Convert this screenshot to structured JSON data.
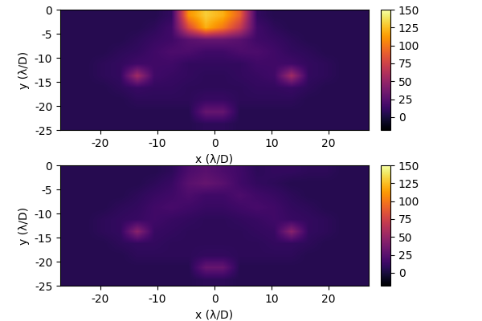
{
  "chart_data": [
    {
      "type": "heatmap",
      "x_label": "x (λ/D)",
      "y_label": "y (λ/D)",
      "color": "inferno",
      "xlim": [
        -27,
        27
      ],
      "ylim": [
        -25,
        0
      ],
      "xticks": [
        -20,
        -10,
        0,
        10,
        20
      ],
      "yticks": [
        0,
        -5,
        -10,
        -15,
        -20,
        -25
      ],
      "cells": [
        [
          5,
          5,
          5,
          5,
          5,
          5,
          10,
          110,
          130,
          120,
          90,
          10,
          5,
          5,
          5,
          5,
          5,
          5
        ],
        [
          5,
          5,
          5,
          5,
          5,
          8,
          15,
          80,
          120,
          100,
          70,
          15,
          8,
          5,
          5,
          5,
          5,
          5
        ],
        [
          5,
          5,
          5,
          5,
          8,
          12,
          15,
          25,
          30,
          30,
          25,
          15,
          12,
          8,
          5,
          5,
          5,
          5
        ],
        [
          5,
          5,
          5,
          8,
          10,
          15,
          20,
          20,
          15,
          15,
          20,
          20,
          15,
          10,
          8,
          5,
          5,
          5
        ],
        [
          5,
          5,
          8,
          10,
          15,
          15,
          15,
          10,
          10,
          10,
          10,
          15,
          15,
          15,
          10,
          8,
          5,
          5
        ],
        [
          5,
          5,
          8,
          10,
          55,
          15,
          12,
          10,
          8,
          8,
          10,
          12,
          15,
          55,
          10,
          8,
          5,
          5
        ],
        [
          5,
          5,
          5,
          8,
          12,
          10,
          10,
          8,
          8,
          8,
          8,
          10,
          10,
          12,
          8,
          5,
          5,
          5
        ],
        [
          5,
          5,
          5,
          5,
          8,
          8,
          8,
          8,
          12,
          12,
          8,
          8,
          8,
          8,
          5,
          5,
          5,
          5
        ],
        [
          5,
          5,
          5,
          5,
          5,
          5,
          5,
          5,
          30,
          30,
          5,
          5,
          5,
          5,
          5,
          5,
          5,
          5
        ],
        [
          5,
          5,
          5,
          5,
          5,
          5,
          5,
          5,
          8,
          8,
          5,
          5,
          5,
          5,
          5,
          5,
          5,
          5
        ]
      ],
      "colorbar_range": [
        -18,
        150
      ],
      "colorbar_ticks": [
        0,
        25,
        50,
        75,
        100,
        125,
        150
      ]
    },
    {
      "type": "heatmap",
      "x_label": "x (λ/D)",
      "y_label": "y (λ/D)",
      "color": "inferno",
      "xlim": [
        -27,
        27
      ],
      "ylim": [
        -25,
        0
      ],
      "xticks": [
        -20,
        -10,
        0,
        10,
        20
      ],
      "yticks": [
        0,
        -5,
        -10,
        -15,
        -20,
        -25
      ],
      "cells": [
        [
          5,
          5,
          5,
          5,
          5,
          5,
          8,
          20,
          25,
          20,
          15,
          8,
          10,
          10,
          8,
          8,
          5,
          5
        ],
        [
          5,
          5,
          5,
          5,
          5,
          8,
          12,
          25,
          30,
          25,
          15,
          10,
          8,
          5,
          5,
          5,
          5,
          5
        ],
        [
          5,
          5,
          5,
          5,
          8,
          12,
          15,
          20,
          15,
          15,
          20,
          15,
          12,
          8,
          5,
          5,
          5,
          5
        ],
        [
          5,
          5,
          5,
          8,
          10,
          15,
          18,
          15,
          12,
          12,
          15,
          18,
          15,
          10,
          8,
          5,
          5,
          5
        ],
        [
          5,
          5,
          8,
          10,
          12,
          15,
          12,
          10,
          8,
          8,
          10,
          12,
          15,
          12,
          10,
          8,
          5,
          5
        ],
        [
          5,
          5,
          8,
          10,
          45,
          12,
          10,
          8,
          8,
          8,
          8,
          10,
          12,
          45,
          10,
          8,
          5,
          5
        ],
        [
          5,
          5,
          5,
          8,
          10,
          10,
          8,
          8,
          8,
          8,
          8,
          8,
          10,
          10,
          8,
          5,
          5,
          5
        ],
        [
          5,
          5,
          5,
          5,
          8,
          8,
          8,
          8,
          10,
          10,
          8,
          8,
          8,
          8,
          5,
          5,
          5,
          5
        ],
        [
          5,
          5,
          5,
          5,
          5,
          5,
          5,
          5,
          30,
          30,
          5,
          5,
          5,
          5,
          5,
          5,
          5,
          5
        ],
        [
          5,
          5,
          5,
          5,
          5,
          5,
          5,
          5,
          8,
          8,
          5,
          5,
          5,
          5,
          5,
          5,
          5,
          5
        ]
      ],
      "colorbar_range": [
        -18,
        150
      ],
      "colorbar_ticks": [
        0,
        25,
        50,
        75,
        100,
        125,
        150
      ]
    }
  ]
}
